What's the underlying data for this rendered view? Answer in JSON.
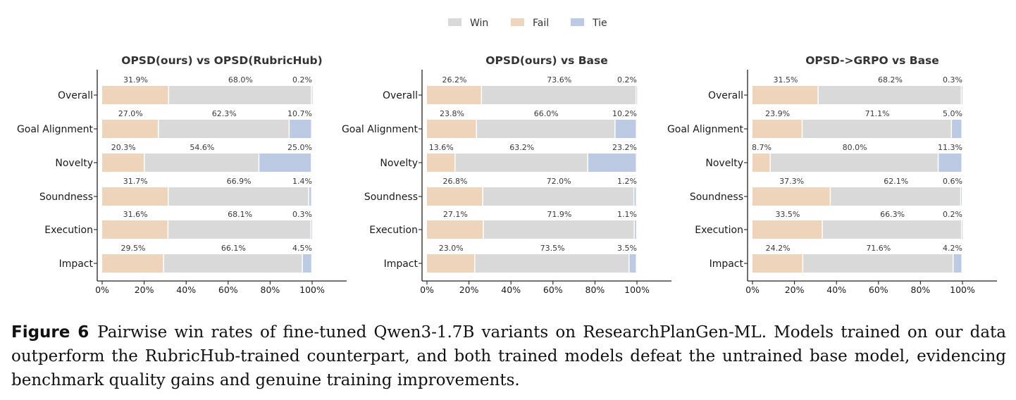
{
  "legend": [
    {
      "name": "Win",
      "color": "#d9d9d9"
    },
    {
      "name": "Fail",
      "color": "#efd4bc"
    },
    {
      "name": "Tie",
      "color": "#bccbe3"
    }
  ],
  "chart_data": [
    {
      "type": "bar",
      "orientation": "horizontal-stacked",
      "title": "OPSD(ours) vs OPSD(RubricHub)",
      "categories": [
        "Overall",
        "Goal Alignment",
        "Novelty",
        "Soundness",
        "Execution",
        "Impact"
      ],
      "series": [
        {
          "name": "Fail",
          "values": [
            31.9,
            27.0,
            20.3,
            31.7,
            31.6,
            29.5
          ]
        },
        {
          "name": "Win",
          "values": [
            68.0,
            62.3,
            54.6,
            66.9,
            68.1,
            66.1
          ]
        },
        {
          "name": "Tie",
          "values": [
            0.2,
            10.7,
            25.0,
            1.4,
            0.3,
            4.5
          ]
        }
      ],
      "xticks": [
        "0%",
        "20%",
        "40%",
        "60%",
        "80%",
        "100%"
      ],
      "xlim": [
        0,
        100
      ]
    },
    {
      "type": "bar",
      "orientation": "horizontal-stacked",
      "title": "OPSD(ours) vs Base",
      "categories": [
        "Overall",
        "Goal Alignment",
        "Novelty",
        "Soundness",
        "Execution",
        "Impact"
      ],
      "series": [
        {
          "name": "Fail",
          "values": [
            26.2,
            23.8,
            13.6,
            26.8,
            27.1,
            23.0
          ]
        },
        {
          "name": "Win",
          "values": [
            73.6,
            66.0,
            63.2,
            72.0,
            71.9,
            73.5
          ]
        },
        {
          "name": "Tie",
          "values": [
            0.2,
            10.2,
            23.2,
            1.2,
            1.1,
            3.5
          ]
        }
      ],
      "xticks": [
        "0%",
        "20%",
        "40%",
        "60%",
        "80%",
        "100%"
      ],
      "xlim": [
        0,
        100
      ]
    },
    {
      "type": "bar",
      "orientation": "horizontal-stacked",
      "title": "OPSD->GRPO vs Base",
      "categories": [
        "Overall",
        "Goal Alignment",
        "Novelty",
        "Soundness",
        "Execution",
        "Impact"
      ],
      "series": [
        {
          "name": "Fail",
          "values": [
            31.5,
            23.9,
            8.7,
            37.3,
            33.5,
            24.2
          ]
        },
        {
          "name": "Win",
          "values": [
            68.2,
            71.1,
            80.0,
            62.1,
            66.3,
            71.6
          ]
        },
        {
          "name": "Tie",
          "values": [
            0.3,
            5.0,
            11.3,
            0.6,
            0.2,
            4.2
          ]
        }
      ],
      "xticks": [
        "0%",
        "20%",
        "40%",
        "60%",
        "80%",
        "100%"
      ],
      "xlim": [
        0,
        100
      ]
    }
  ],
  "caption": {
    "label": "Figure 6",
    "text": "Pairwise win rates of fine-tuned Qwen3-1.7B variants on ResearchPlanGen-ML. Models trained on our data outperform the RubricHub-trained counterpart, and both trained models defeat the untrained base model, evidencing benchmark quality gains and genuine training improvements."
  }
}
